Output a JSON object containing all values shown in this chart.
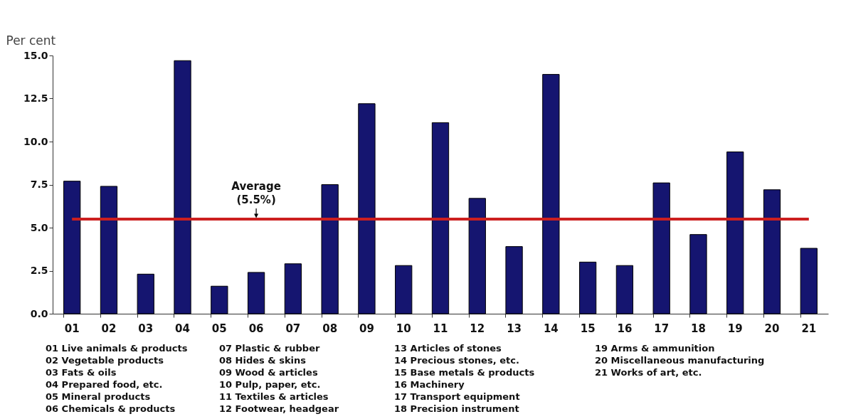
{
  "chart_data": {
    "type": "bar",
    "ylabel": "Per cent",
    "categories": [
      "01",
      "02",
      "03",
      "04",
      "05",
      "06",
      "07",
      "08",
      "09",
      "10",
      "11",
      "12",
      "13",
      "14",
      "15",
      "16",
      "17",
      "18",
      "19",
      "20",
      "21"
    ],
    "values": [
      7.7,
      7.4,
      2.3,
      14.7,
      1.6,
      2.4,
      2.9,
      7.5,
      12.2,
      2.8,
      11.1,
      6.7,
      3.9,
      13.9,
      3.0,
      2.8,
      7.6,
      4.6,
      9.4,
      7.2,
      3.8
    ],
    "color": "#151570",
    "ylim": [
      0,
      15
    ],
    "yticks": [
      {
        "value": 0,
        "label": "0.0"
      },
      {
        "value": 2.5,
        "label": "2.5"
      },
      {
        "value": 5,
        "label": "5.0"
      },
      {
        "value": 7.5,
        "label": "7.5"
      },
      {
        "value": 10,
        "label": "10.0"
      },
      {
        "value": 12.5,
        "label": "12.5"
      },
      {
        "value": 15,
        "label": "15.0"
      }
    ],
    "ref_lines": [
      {
        "axis": "y",
        "value": 5.5,
        "label": "Average (5.5%)",
        "color": "#cc1f1f"
      }
    ],
    "annotations": [
      "01 Live animals & products",
      "02 Vegetable products",
      "03 Fats & oils",
      "04 Prepared food, etc.",
      "05 Mineral products",
      "06 Chemicals & products",
      "07 Plastic & rubber",
      "08 Hides & skins",
      "09 Wood & articles",
      "10 Pulp, paper, etc.",
      "11 Textiles & articles",
      "12 Footwear, headgear",
      "13 Articles of stones",
      "14 Precious stones, etc.",
      "15 Base metals & products",
      "16 Machinery",
      "17 Transport equipment",
      "18 Precision instrument",
      "19 Arms & ammunition",
      "20 Miscellaneous manufacturing",
      "21 Works of art, etc."
    ]
  }
}
